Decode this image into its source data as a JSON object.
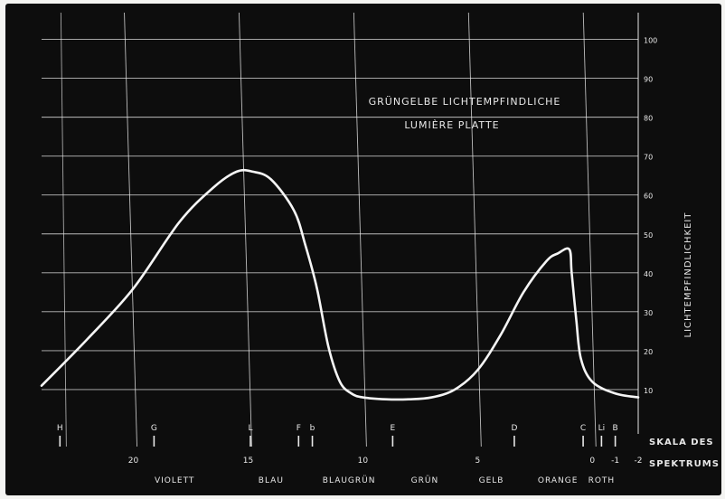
{
  "chart_data": {
    "type": "line",
    "title": [
      "GRÜNGELBE LICHTEMPFINDLICHE",
      "LUMIÈRE PLATTE"
    ],
    "ylabel": "LICHTEMPFINDLICHKEIT",
    "xlabel": [
      "SKALA DES",
      "SPEKTRUMS"
    ],
    "yticks": [
      10,
      20,
      30,
      40,
      50,
      60,
      70,
      80,
      90,
      100
    ],
    "ylim": [
      0,
      105
    ],
    "xlim": [
      24,
      -2
    ],
    "xticks": [
      {
        "value": 20,
        "label": "20"
      },
      {
        "value": 15,
        "label": "15"
      },
      {
        "value": 10,
        "label": "10"
      },
      {
        "value": 5,
        "label": "5"
      },
      {
        "value": 0,
        "label": "0"
      },
      {
        "value": -1,
        "label": "-1"
      },
      {
        "value": -2,
        "label": "-2"
      }
    ],
    "spectral_lines": [
      {
        "value": 23.2,
        "label": "H"
      },
      {
        "value": 19.1,
        "label": "G"
      },
      {
        "value": 14.9,
        "label": "L"
      },
      {
        "value": 12.8,
        "label": "F"
      },
      {
        "value": 12.2,
        "label": "b"
      },
      {
        "value": 8.7,
        "label": "E"
      },
      {
        "value": 3.4,
        "label": "D"
      },
      {
        "value": 0.4,
        "label": "C"
      },
      {
        "value": -0.4,
        "label": "Li"
      },
      {
        "value": -1.0,
        "label": "B"
      }
    ],
    "color_regions": [
      {
        "label": "VIOLETT",
        "center": 18.2
      },
      {
        "label": "BLAU",
        "center": 14.0
      },
      {
        "label": "BLAUGRÜN",
        "center": 10.6
      },
      {
        "label": "GRÜN",
        "center": 7.3
      },
      {
        "label": "GELB",
        "center": 4.4
      },
      {
        "label": "ORANGE",
        "center": 1.5
      },
      {
        "label": "ROTH",
        "center": -0.4
      }
    ],
    "series": [
      {
        "x": [
          24,
          22,
          20,
          18,
          16.5,
          15.5,
          14.8,
          14,
          13,
          12.5,
          12,
          11.5,
          11,
          10.5,
          10,
          9,
          8,
          7,
          6,
          5,
          4,
          3,
          2,
          1.5,
          1.0,
          0.9,
          0.7,
          0.5,
          0,
          -1,
          -2
        ],
        "y": [
          11,
          23,
          36,
          53,
          62,
          66,
          66,
          64,
          56,
          47,
          36,
          21,
          12,
          9,
          8,
          7.5,
          7.5,
          8,
          10,
          15,
          24,
          35,
          43,
          45,
          46,
          40,
          28,
          18,
          12,
          9,
          8
        ]
      }
    ],
    "grid": true,
    "colors": {
      "background": "#0d0d0d",
      "ink": "#e8e8e8",
      "curve": "#f5f5f5"
    }
  }
}
